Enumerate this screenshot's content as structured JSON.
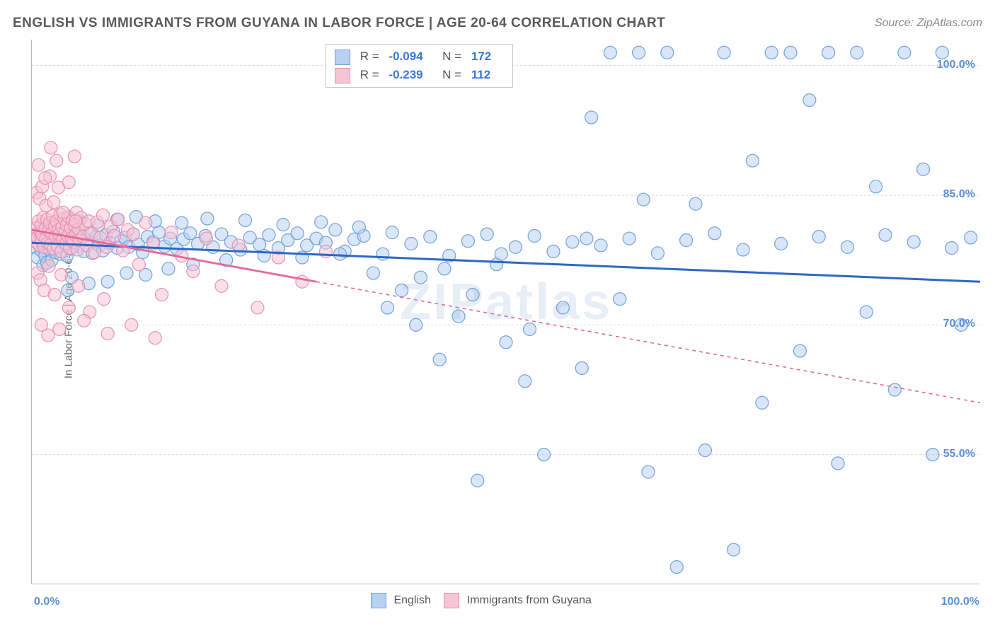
{
  "header": {
    "title": "ENGLISH VS IMMIGRANTS FROM GUYANA IN LABOR FORCE | AGE 20-64 CORRELATION CHART",
    "source": "Source: ZipAtlas.com"
  },
  "axes": {
    "y_label": "In Labor Force | Age 20-64",
    "x_min": 0.0,
    "x_max": 100.0,
    "y_min": 40.0,
    "y_max": 103.0,
    "y_ticks": [
      55.0,
      70.0,
      85.0,
      100.0
    ],
    "y_tick_labels": [
      "55.0%",
      "70.0%",
      "85.0%",
      "100.0%"
    ],
    "x_ticks": [
      0,
      10,
      20,
      30,
      40,
      50,
      60,
      70,
      80,
      90,
      100
    ],
    "x_tick_labels": {
      "0": "0.0%",
      "100": "100.0%"
    },
    "grid_color": "#d6d6d6",
    "tick_color": "#bcbcbc",
    "tick_label_color": "#5b8fd6",
    "axis_label_color": "#666666"
  },
  "series": [
    {
      "name": "English",
      "color_fill": "#b8d1f0",
      "color_stroke": "#6f9fd8",
      "marker_radius": 9,
      "marker_opacity": 0.55,
      "trend": {
        "y_at_x0": 79.5,
        "y_at_x100": 75.0,
        "stroke": "#2e68c5",
        "width": 3,
        "dash": "",
        "extrapolate_dash": ""
      },
      "R": "-0.094",
      "N": "172",
      "points": [
        [
          0.4,
          79.0
        ],
        [
          0.6,
          77.8
        ],
        [
          0.9,
          80.2
        ],
        [
          1.0,
          78.6
        ],
        [
          1.1,
          79.5
        ],
        [
          1.2,
          76.9
        ],
        [
          1.3,
          80.9
        ],
        [
          1.4,
          78.0
        ],
        [
          1.5,
          79.8
        ],
        [
          1.6,
          77.2
        ],
        [
          1.8,
          80.4
        ],
        [
          1.9,
          78.7
        ],
        [
          2.0,
          79.3
        ],
        [
          2.1,
          77.5
        ],
        [
          2.3,
          80.0
        ],
        [
          2.5,
          78.4
        ],
        [
          2.7,
          80.6
        ],
        [
          2.9,
          79.0
        ],
        [
          3.0,
          78.2
        ],
        [
          3.2,
          80.3
        ],
        [
          3.5,
          79.4
        ],
        [
          3.7,
          78.0
        ],
        [
          3.9,
          80.1
        ],
        [
          4.1,
          78.8
        ],
        [
          4.3,
          79.6
        ],
        [
          4.6,
          80.5
        ],
        [
          4.9,
          79.1
        ],
        [
          5.2,
          80.0
        ],
        [
          5.5,
          78.5
        ],
        [
          5.8,
          79.8
        ],
        [
          6.1,
          80.7
        ],
        [
          6.4,
          78.3
        ],
        [
          6.8,
          80.2
        ],
        [
          7.1,
          79.2
        ],
        [
          7.5,
          78.6
        ],
        [
          7.8,
          80.4
        ],
        [
          8.2,
          79.5
        ],
        [
          8.6,
          80.8
        ],
        [
          9.0,
          78.9
        ],
        [
          9.4,
          79.7
        ],
        [
          9.8,
          80.1
        ],
        [
          10.2,
          79.0
        ],
        [
          10.7,
          80.5
        ],
        [
          11.2,
          79.3
        ],
        [
          11.7,
          78.4
        ],
        [
          12.2,
          80.2
        ],
        [
          12.8,
          79.6
        ],
        [
          13.4,
          80.7
        ],
        [
          14.0,
          79.1
        ],
        [
          14.6,
          80.0
        ],
        [
          15.3,
          78.8
        ],
        [
          16.0,
          79.9
        ],
        [
          16.7,
          80.6
        ],
        [
          17.5,
          79.4
        ],
        [
          18.3,
          80.3
        ],
        [
          19.1,
          79.0
        ],
        [
          20.0,
          80.5
        ],
        [
          21.0,
          79.6
        ],
        [
          22.0,
          78.7
        ],
        [
          23.0,
          80.1
        ],
        [
          24.0,
          79.3
        ],
        [
          25.0,
          80.4
        ],
        [
          26.0,
          78.9
        ],
        [
          27.0,
          79.8
        ],
        [
          28.0,
          80.6
        ],
        [
          29.0,
          79.2
        ],
        [
          30.0,
          80.0
        ],
        [
          31.0,
          79.5
        ],
        [
          32.0,
          81.0
        ],
        [
          33.0,
          78.5
        ],
        [
          34.0,
          79.9
        ],
        [
          35.0,
          80.3
        ],
        [
          36.0,
          76.0
        ],
        [
          37.0,
          78.2
        ],
        [
          38.0,
          80.7
        ],
        [
          39.0,
          74.0
        ],
        [
          40.0,
          79.4
        ],
        [
          41.0,
          75.5
        ],
        [
          42.0,
          80.2
        ],
        [
          43.0,
          66.0
        ],
        [
          44.0,
          78.0
        ],
        [
          45.0,
          71.0
        ],
        [
          46.0,
          79.7
        ],
        [
          47.0,
          52.0
        ],
        [
          48.0,
          80.5
        ],
        [
          49.0,
          77.0
        ],
        [
          50.0,
          68.0
        ],
        [
          51.0,
          79.0
        ],
        [
          52.0,
          63.5
        ],
        [
          53.0,
          80.3
        ],
        [
          54.0,
          55.0
        ],
        [
          55.0,
          78.5
        ],
        [
          56.0,
          72.0
        ],
        [
          57.0,
          79.6
        ],
        [
          58.0,
          65.0
        ],
        [
          59.0,
          94.0
        ],
        [
          60.0,
          79.2
        ],
        [
          61.0,
          101.5
        ],
        [
          62.0,
          73.0
        ],
        [
          63.0,
          80.0
        ],
        [
          64.0,
          101.5
        ],
        [
          65.0,
          53.0
        ],
        [
          66.0,
          78.3
        ],
        [
          67.0,
          101.5
        ],
        [
          68.0,
          42.0
        ],
        [
          69.0,
          79.8
        ],
        [
          70.0,
          84.0
        ],
        [
          71.0,
          55.5
        ],
        [
          72.0,
          80.6
        ],
        [
          73.0,
          101.5
        ],
        [
          74.0,
          44.0
        ],
        [
          75.0,
          78.7
        ],
        [
          76.0,
          89.0
        ],
        [
          77.0,
          61.0
        ],
        [
          78.0,
          101.5
        ],
        [
          79.0,
          79.4
        ],
        [
          80.0,
          101.5
        ],
        [
          81.0,
          67.0
        ],
        [
          82.0,
          96.0
        ],
        [
          83.0,
          80.2
        ],
        [
          84.0,
          101.5
        ],
        [
          85.0,
          54.0
        ],
        [
          86.0,
          79.0
        ],
        [
          87.0,
          101.5
        ],
        [
          88.0,
          71.5
        ],
        [
          89.0,
          86.0
        ],
        [
          90.0,
          80.4
        ],
        [
          91.0,
          62.5
        ],
        [
          92.0,
          101.5
        ],
        [
          93.0,
          79.6
        ],
        [
          94.0,
          88.0
        ],
        [
          95.0,
          55.0
        ],
        [
          96.0,
          101.5
        ],
        [
          97.0,
          78.9
        ],
        [
          98.0,
          70.0
        ],
        [
          99.0,
          80.1
        ],
        [
          3.8,
          74.0
        ],
        [
          4.0,
          82.3
        ],
        [
          4.2,
          75.5
        ],
        [
          5.0,
          82.0
        ],
        [
          6.0,
          74.8
        ],
        [
          7.0,
          81.5
        ],
        [
          8.0,
          75.0
        ],
        [
          9.0,
          82.2
        ],
        [
          10.0,
          76.0
        ],
        [
          11.0,
          82.5
        ],
        [
          12.0,
          75.8
        ],
        [
          13.0,
          82.0
        ],
        [
          14.4,
          76.5
        ],
        [
          15.8,
          81.8
        ],
        [
          17.0,
          77.0
        ],
        [
          18.5,
          82.3
        ],
        [
          20.5,
          77.5
        ],
        [
          22.5,
          82.1
        ],
        [
          24.5,
          78.0
        ],
        [
          26.5,
          81.6
        ],
        [
          28.5,
          77.8
        ],
        [
          30.5,
          81.9
        ],
        [
          32.5,
          78.2
        ],
        [
          34.5,
          81.3
        ],
        [
          37.5,
          72.0
        ],
        [
          40.5,
          70.0
        ],
        [
          43.5,
          76.5
        ],
        [
          46.5,
          73.5
        ],
        [
          49.5,
          78.2
        ],
        [
          52.5,
          69.5
        ],
        [
          58.5,
          80.0
        ],
        [
          64.5,
          84.5
        ]
      ]
    },
    {
      "name": "Immigrants from Guyana",
      "color_fill": "#f6c4d5",
      "color_stroke": "#e88fb0",
      "marker_radius": 9,
      "marker_opacity": 0.55,
      "trend": {
        "y_at_x0": 81.0,
        "y_at_x100": 61.0,
        "stroke": "#e26a9a",
        "width": 2.8,
        "dash": "",
        "extrapolate_dash": "5,5",
        "solid_until_x": 30
      },
      "R": "-0.239",
      "N": "112",
      "points": [
        [
          0.3,
          80.5
        ],
        [
          0.4,
          79.6
        ],
        [
          0.5,
          81.2
        ],
        [
          0.6,
          80.1
        ],
        [
          0.7,
          82.0
        ],
        [
          0.8,
          79.2
        ],
        [
          0.9,
          80.8
        ],
        [
          1.0,
          81.6
        ],
        [
          1.0,
          79.8
        ],
        [
          1.1,
          80.4
        ],
        [
          1.2,
          82.4
        ],
        [
          1.3,
          79.0
        ],
        [
          1.4,
          81.1
        ],
        [
          1.5,
          80.0
        ],
        [
          1.6,
          82.2
        ],
        [
          1.7,
          79.5
        ],
        [
          1.8,
          80.9
        ],
        [
          1.9,
          81.8
        ],
        [
          2.0,
          79.3
        ],
        [
          2.1,
          80.6
        ],
        [
          2.2,
          82.6
        ],
        [
          2.3,
          78.8
        ],
        [
          2.4,
          81.4
        ],
        [
          2.5,
          80.2
        ],
        [
          2.6,
          82.0
        ],
        [
          2.7,
          79.1
        ],
        [
          2.8,
          81.0
        ],
        [
          2.9,
          80.5
        ],
        [
          3.0,
          82.8
        ],
        [
          3.1,
          78.5
        ],
        [
          3.2,
          81.3
        ],
        [
          3.3,
          79.9
        ],
        [
          3.4,
          82.3
        ],
        [
          3.5,
          80.7
        ],
        [
          3.6,
          79.4
        ],
        [
          3.7,
          81.6
        ],
        [
          3.8,
          80.3
        ],
        [
          3.9,
          82.5
        ],
        [
          4.0,
          78.9
        ],
        [
          4.1,
          81.2
        ],
        [
          4.2,
          80.0
        ],
        [
          4.3,
          82.1
        ],
        [
          4.4,
          79.6
        ],
        [
          4.5,
          81.5
        ],
        [
          4.6,
          80.4
        ],
        [
          4.7,
          83.0
        ],
        [
          4.8,
          78.7
        ],
        [
          4.9,
          81.1
        ],
        [
          5.0,
          79.8
        ],
        [
          5.2,
          82.4
        ],
        [
          5.4,
          80.2
        ],
        [
          5.6,
          81.7
        ],
        [
          5.8,
          79.2
        ],
        [
          6.0,
          82.0
        ],
        [
          6.3,
          80.6
        ],
        [
          6.6,
          78.4
        ],
        [
          6.9,
          81.9
        ],
        [
          7.2,
          80.1
        ],
        [
          7.5,
          82.7
        ],
        [
          7.9,
          79.0
        ],
        [
          8.3,
          81.4
        ],
        [
          8.7,
          80.3
        ],
        [
          9.1,
          82.2
        ],
        [
          9.6,
          78.6
        ],
        [
          10.1,
          81.0
        ],
        [
          10.7,
          80.5
        ],
        [
          11.3,
          77.0
        ],
        [
          12.0,
          81.8
        ],
        [
          12.8,
          79.4
        ],
        [
          13.7,
          73.5
        ],
        [
          14.7,
          80.7
        ],
        [
          15.8,
          78.0
        ],
        [
          17.0,
          76.2
        ],
        [
          18.4,
          80.0
        ],
        [
          20.0,
          74.5
        ],
        [
          21.8,
          79.2
        ],
        [
          23.8,
          72.0
        ],
        [
          26.0,
          77.8
        ],
        [
          28.5,
          75.0
        ],
        [
          31.0,
          78.5
        ],
        [
          0.5,
          85.3
        ],
        [
          0.8,
          84.6
        ],
        [
          1.1,
          86.0
        ],
        [
          1.5,
          83.8
        ],
        [
          1.9,
          87.2
        ],
        [
          2.3,
          84.2
        ],
        [
          2.8,
          85.9
        ],
        [
          3.3,
          83.0
        ],
        [
          3.9,
          86.5
        ],
        [
          4.6,
          82.0
        ],
        [
          0.6,
          76.0
        ],
        [
          0.9,
          75.2
        ],
        [
          1.3,
          74.0
        ],
        [
          1.8,
          76.8
        ],
        [
          2.4,
          73.5
        ],
        [
          3.1,
          75.8
        ],
        [
          3.9,
          72.0
        ],
        [
          4.9,
          74.5
        ],
        [
          6.1,
          71.5
        ],
        [
          7.6,
          73.0
        ],
        [
          0.7,
          88.5
        ],
        [
          1.4,
          87.0
        ],
        [
          2.6,
          89.0
        ],
        [
          1.0,
          70.0
        ],
        [
          1.7,
          68.8
        ],
        [
          2.9,
          69.5
        ],
        [
          2.0,
          90.5
        ],
        [
          4.5,
          89.5
        ],
        [
          5.5,
          70.5
        ],
        [
          8.0,
          69.0
        ],
        [
          10.5,
          70.0
        ],
        [
          13.0,
          68.5
        ]
      ]
    }
  ],
  "legend": {
    "items": [
      {
        "label": "English",
        "fill": "#b8d1f0",
        "stroke": "#6f9fd8"
      },
      {
        "label": "Immigrants from Guyana",
        "fill": "#f6c4d5",
        "stroke": "#e88fb0"
      }
    ]
  },
  "watermark": "ZIPatlas"
}
